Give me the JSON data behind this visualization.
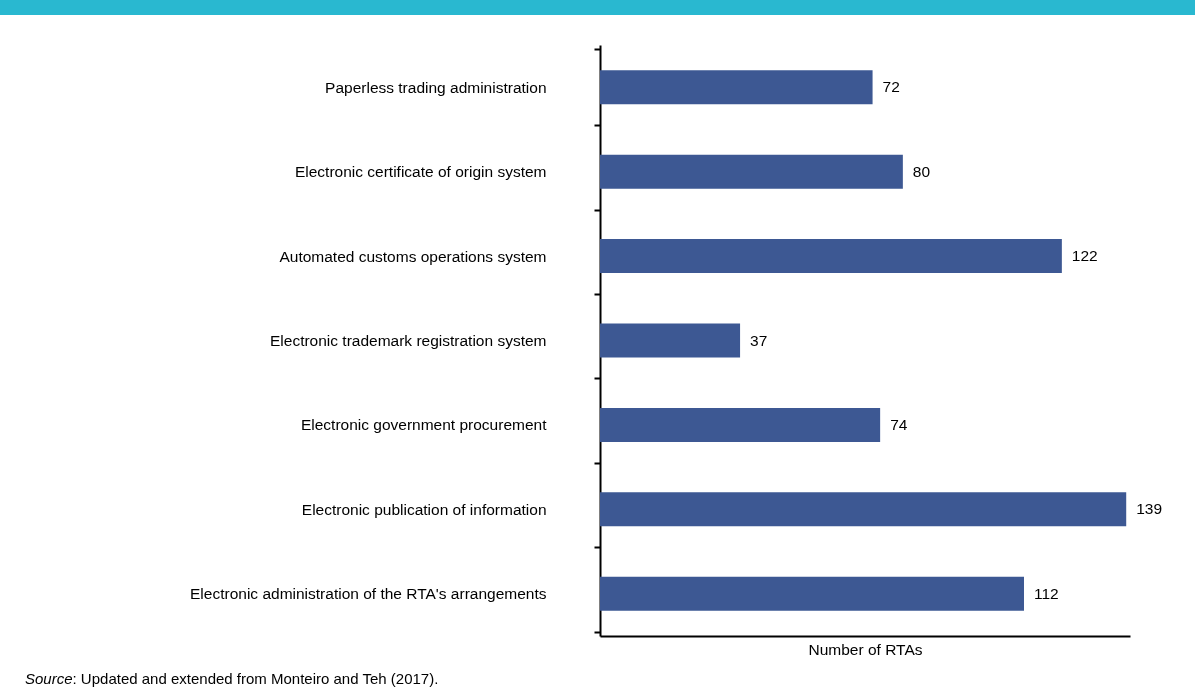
{
  "chart_data": {
    "type": "bar",
    "orientation": "horizontal",
    "xlabel": "Number of RTAs",
    "categories": [
      "Paperless trading administration",
      "Electronic certificate of origin system",
      "Automated customs operations system",
      "Electronic trademark registration system",
      "Electronic government procurement",
      "Electronic publication of information",
      "Electronic administration of the RTA's arrangements"
    ],
    "values": [
      72,
      80,
      122,
      37,
      74,
      139,
      112
    ],
    "color": "#3d5893",
    "data_labels": true,
    "tick_labels": "y",
    "grid": false,
    "annotations": [
      "Source: Updated and extended from Monteiro and Teh (2017)."
    ]
  }
}
